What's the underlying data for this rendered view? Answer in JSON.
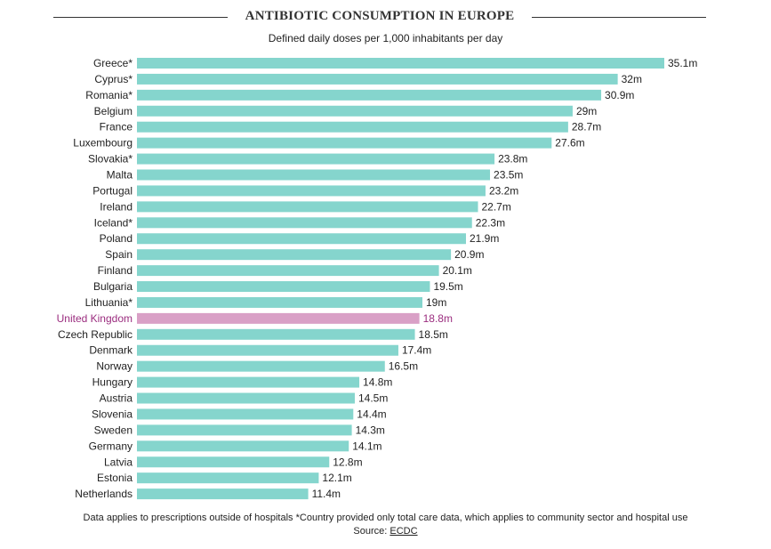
{
  "header": {
    "title": "ANTIBIOTIC CONSUMPTION IN EUROPE",
    "subtitle": "Defined daily doses per 1,000 inhabitants per day"
  },
  "footer": {
    "note": "Data applies to prescriptions outside of hospitals *Country provided only total care data, which applies to community sector and hospital use",
    "source_prefix": "Source: ",
    "source_link": "ECDC"
  },
  "colors": {
    "bar": "#85d5cd",
    "highlight_bar": "#d9a0c6",
    "highlight_label": "#9b2d7f",
    "text": "#222222"
  },
  "chart_data": {
    "type": "bar",
    "orientation": "horizontal",
    "title": "ANTIBIOTIC CONSUMPTION IN EUROPE",
    "subtitle": "Defined daily doses per 1,000 inhabitants per day",
    "categories": [
      "Greece*",
      "Cyprus*",
      "Romania*",
      "Belgium",
      "France",
      "Luxembourg",
      "Slovakia*",
      "Malta",
      "Portugal",
      "Ireland",
      "Iceland*",
      "Poland",
      "Spain",
      "Finland",
      "Bulgaria",
      "Lithuania*",
      "United Kingdom",
      "Czech Republic",
      "Denmark",
      "Norway",
      "Hungary",
      "Austria",
      "Slovenia",
      "Sweden",
      "Germany",
      "Latvia",
      "Estonia",
      "Netherlands"
    ],
    "values": [
      35.1,
      32,
      30.9,
      29,
      28.7,
      27.6,
      23.8,
      23.5,
      23.2,
      22.7,
      22.3,
      21.9,
      20.9,
      20.1,
      19.5,
      19,
      18.8,
      18.5,
      17.4,
      16.5,
      14.8,
      14.5,
      14.4,
      14.3,
      14.1,
      12.8,
      12.1,
      11.4
    ],
    "value_labels": [
      "35.1m",
      "32m",
      "30.9m",
      "29m",
      "28.7m",
      "27.6m",
      "23.8m",
      "23.5m",
      "23.2m",
      "22.7m",
      "22.3m",
      "21.9m",
      "20.9m",
      "20.1m",
      "19.5m",
      "19m",
      "18.8m",
      "18.5m",
      "17.4m",
      "16.5m",
      "14.8m",
      "14.5m",
      "14.4m",
      "14.3m",
      "14.1m",
      "12.8m",
      "12.1m",
      "11.4m"
    ],
    "highlight": "United Kingdom",
    "xlim": [
      0,
      35.1
    ],
    "grid": false,
    "legend": "none"
  }
}
